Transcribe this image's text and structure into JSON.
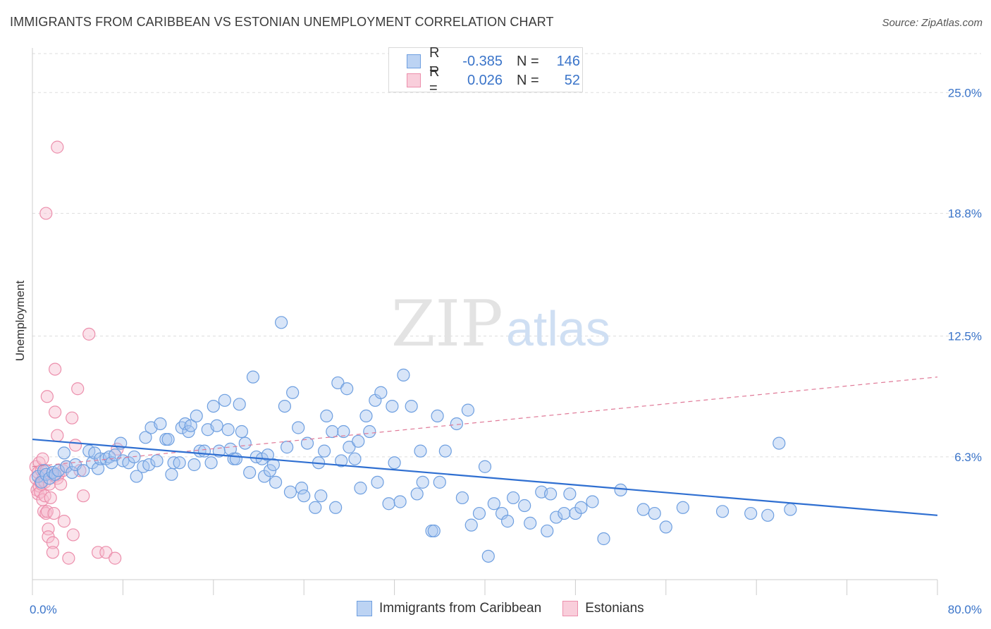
{
  "title": "IMMIGRANTS FROM CARIBBEAN VS ESTONIAN UNEMPLOYMENT CORRELATION CHART",
  "source": "Source: ZipAtlas.com",
  "watermark": {
    "zip": "ZIP",
    "atlas": "atlas"
  },
  "legend_top": [
    {
      "r_label": "R =",
      "r_value": "-0.385",
      "n_label": "N =",
      "n_value": "146"
    },
    {
      "r_label": "R =",
      "r_value": "0.026",
      "n_label": "N =",
      "n_value": "52"
    }
  ],
  "legend_bottom": [
    "Immigrants from Caribbean",
    "Estonians"
  ],
  "colors": {
    "blue_fill": "#a9c6f0",
    "blue_stroke": "#6e9fe0",
    "blue_line": "#2f6fd1",
    "pink_fill": "#f7bfd0",
    "pink_stroke": "#ec8fac",
    "pink_line": "#e07a98",
    "axis_text": "#3a74c9",
    "grid": "#dddddd"
  },
  "chart_data": {
    "type": "scatter",
    "title": "IMMIGRANTS FROM CARIBBEAN VS ESTONIAN UNEMPLOYMENT CORRELATION CHART",
    "xlabel": "",
    "ylabel": "Unemployment",
    "xlim": [
      0,
      80
    ],
    "ylim": [
      0,
      27
    ],
    "x_tick_labels": [
      "0.0%",
      "80.0%"
    ],
    "y_ticks": [
      6.3,
      12.5,
      18.8,
      25.0
    ],
    "y_tick_labels": [
      "6.3%",
      "12.5%",
      "18.8%",
      "25.0%"
    ],
    "grid": true,
    "legend_position": "top-center",
    "series": [
      {
        "name": "Immigrants from Caribbean",
        "r": -0.385,
        "n": 146,
        "trend": {
          "x": [
            0,
            80
          ],
          "y": [
            7.2,
            3.3
          ]
        },
        "points": [
          [
            0.5,
            5.3
          ],
          [
            0.8,
            5.0
          ],
          [
            1.0,
            5.6
          ],
          [
            1.2,
            5.4
          ],
          [
            1.5,
            5.2
          ],
          [
            1.8,
            5.5
          ],
          [
            2.0,
            5.4
          ],
          [
            2.3,
            5.6
          ],
          [
            2.8,
            6.5
          ],
          [
            3.0,
            5.8
          ],
          [
            3.5,
            5.5
          ],
          [
            3.8,
            5.9
          ],
          [
            4.5,
            5.6
          ],
          [
            5.0,
            6.6
          ],
          [
            5.3,
            6.0
          ],
          [
            5.5,
            6.5
          ],
          [
            5.8,
            5.7
          ],
          [
            6.0,
            6.2
          ],
          [
            6.5,
            6.2
          ],
          [
            6.8,
            6.3
          ],
          [
            7.0,
            6.0
          ],
          [
            7.3,
            6.4
          ],
          [
            7.8,
            7.0
          ],
          [
            8.0,
            6.1
          ],
          [
            8.5,
            6.0
          ],
          [
            9.0,
            6.3
          ],
          [
            9.2,
            5.3
          ],
          [
            9.8,
            5.8
          ],
          [
            10.0,
            7.3
          ],
          [
            10.3,
            5.9
          ],
          [
            10.5,
            7.8
          ],
          [
            11.0,
            6.1
          ],
          [
            11.3,
            8.0
          ],
          [
            11.8,
            7.2
          ],
          [
            12.0,
            7.2
          ],
          [
            12.3,
            5.4
          ],
          [
            12.5,
            6.0
          ],
          [
            13.0,
            6.0
          ],
          [
            13.2,
            7.8
          ],
          [
            13.5,
            8.0
          ],
          [
            13.8,
            7.6
          ],
          [
            14.0,
            7.9
          ],
          [
            14.3,
            5.9
          ],
          [
            14.5,
            8.4
          ],
          [
            14.8,
            6.6
          ],
          [
            15.2,
            6.6
          ],
          [
            15.5,
            7.7
          ],
          [
            15.8,
            6.0
          ],
          [
            16.0,
            8.9
          ],
          [
            16.3,
            7.9
          ],
          [
            16.5,
            6.6
          ],
          [
            17.0,
            9.2
          ],
          [
            17.3,
            7.7
          ],
          [
            17.5,
            6.7
          ],
          [
            17.8,
            6.2
          ],
          [
            18.0,
            6.2
          ],
          [
            18.3,
            9.0
          ],
          [
            18.5,
            7.6
          ],
          [
            18.8,
            7.0
          ],
          [
            19.2,
            5.5
          ],
          [
            19.5,
            10.4
          ],
          [
            19.8,
            6.3
          ],
          [
            20.3,
            6.2
          ],
          [
            20.5,
            5.3
          ],
          [
            20.8,
            6.4
          ],
          [
            21.0,
            5.6
          ],
          [
            21.3,
            5.9
          ],
          [
            21.5,
            5.0
          ],
          [
            22.0,
            13.2
          ],
          [
            22.3,
            8.9
          ],
          [
            22.5,
            6.8
          ],
          [
            22.8,
            4.5
          ],
          [
            23.0,
            9.6
          ],
          [
            23.5,
            7.8
          ],
          [
            23.8,
            4.7
          ],
          [
            24.0,
            4.3
          ],
          [
            24.3,
            7.0
          ],
          [
            25.0,
            3.7
          ],
          [
            25.3,
            6.0
          ],
          [
            25.5,
            4.3
          ],
          [
            25.8,
            6.6
          ],
          [
            26.0,
            8.4
          ],
          [
            26.5,
            7.6
          ],
          [
            26.8,
            3.7
          ],
          [
            27.0,
            10.1
          ],
          [
            27.3,
            6.1
          ],
          [
            27.5,
            7.6
          ],
          [
            27.8,
            9.8
          ],
          [
            28.0,
            6.8
          ],
          [
            28.5,
            6.2
          ],
          [
            28.8,
            7.1
          ],
          [
            29.0,
            4.7
          ],
          [
            29.5,
            8.4
          ],
          [
            29.8,
            7.6
          ],
          [
            30.3,
            9.2
          ],
          [
            30.5,
            5.0
          ],
          [
            30.8,
            9.6
          ],
          [
            31.5,
            3.9
          ],
          [
            31.8,
            8.9
          ],
          [
            32.0,
            6.0
          ],
          [
            32.5,
            4.0
          ],
          [
            32.8,
            10.5
          ],
          [
            33.5,
            8.9
          ],
          [
            34.0,
            4.4
          ],
          [
            34.3,
            6.6
          ],
          [
            34.5,
            5.0
          ],
          [
            35.3,
            2.5
          ],
          [
            35.5,
            2.5
          ],
          [
            35.8,
            8.4
          ],
          [
            36.0,
            5.0
          ],
          [
            36.5,
            6.6
          ],
          [
            37.5,
            8.0
          ],
          [
            38.0,
            4.2
          ],
          [
            38.5,
            8.7
          ],
          [
            38.8,
            2.8
          ],
          [
            39.5,
            3.4
          ],
          [
            40.0,
            5.8
          ],
          [
            40.3,
            1.2
          ],
          [
            40.8,
            3.9
          ],
          [
            41.5,
            3.4
          ],
          [
            42.0,
            3.0
          ],
          [
            42.5,
            4.2
          ],
          [
            43.5,
            3.8
          ],
          [
            44.0,
            2.9
          ],
          [
            45.0,
            4.5
          ],
          [
            45.5,
            2.5
          ],
          [
            45.8,
            4.4
          ],
          [
            46.3,
            3.2
          ],
          [
            47.0,
            3.4
          ],
          [
            47.5,
            4.4
          ],
          [
            48.0,
            3.4
          ],
          [
            48.5,
            3.7
          ],
          [
            49.5,
            4.0
          ],
          [
            50.5,
            2.1
          ],
          [
            52.0,
            4.6
          ],
          [
            54.0,
            3.6
          ],
          [
            55.0,
            3.4
          ],
          [
            56.0,
            2.7
          ],
          [
            57.5,
            3.7
          ],
          [
            61.0,
            3.5
          ],
          [
            63.5,
            3.4
          ],
          [
            65.0,
            3.3
          ],
          [
            66.0,
            7.0
          ],
          [
            67.0,
            3.6
          ]
        ]
      },
      {
        "name": "Estonians",
        "r": 0.026,
        "n": 52,
        "trend": {
          "x": [
            0,
            80
          ],
          "y": [
            5.8,
            10.4
          ]
        },
        "points": [
          [
            0.3,
            5.8
          ],
          [
            0.3,
            5.2
          ],
          [
            0.4,
            4.6
          ],
          [
            0.5,
            4.4
          ],
          [
            0.5,
            5.5
          ],
          [
            0.6,
            6.0
          ],
          [
            0.6,
            4.8
          ],
          [
            0.7,
            5.0
          ],
          [
            0.7,
            4.5
          ],
          [
            0.8,
            5.6
          ],
          [
            0.8,
            4.9
          ],
          [
            0.9,
            4.1
          ],
          [
            0.9,
            6.2
          ],
          [
            1.0,
            3.5
          ],
          [
            1.0,
            5.3
          ],
          [
            1.1,
            4.3
          ],
          [
            1.1,
            5.0
          ],
          [
            1.2,
            3.4
          ],
          [
            1.2,
            5.6
          ],
          [
            1.3,
            9.4
          ],
          [
            1.3,
            3.5
          ],
          [
            1.4,
            2.6
          ],
          [
            1.4,
            2.2
          ],
          [
            1.5,
            4.9
          ],
          [
            1.6,
            4.2
          ],
          [
            1.8,
            1.9
          ],
          [
            1.8,
            1.4
          ],
          [
            1.9,
            3.4
          ],
          [
            2.0,
            8.6
          ],
          [
            2.0,
            5.3
          ],
          [
            2.2,
            7.4
          ],
          [
            2.2,
            5.2
          ],
          [
            2.3,
            5.4
          ],
          [
            2.5,
            4.9
          ],
          [
            2.7,
            5.6
          ],
          [
            2.8,
            3.0
          ],
          [
            3.0,
            5.8
          ],
          [
            3.2,
            1.1
          ],
          [
            3.5,
            8.3
          ],
          [
            3.6,
            2.3
          ],
          [
            3.8,
            6.9
          ],
          [
            4.0,
            9.8
          ],
          [
            4.2,
            5.6
          ],
          [
            4.5,
            4.3
          ],
          [
            5.0,
            12.6
          ],
          [
            1.2,
            18.8
          ],
          [
            2.0,
            10.8
          ],
          [
            2.2,
            22.2
          ],
          [
            5.8,
            1.4
          ],
          [
            6.5,
            1.4
          ],
          [
            7.5,
            6.7
          ],
          [
            7.3,
            1.1
          ]
        ]
      }
    ]
  }
}
